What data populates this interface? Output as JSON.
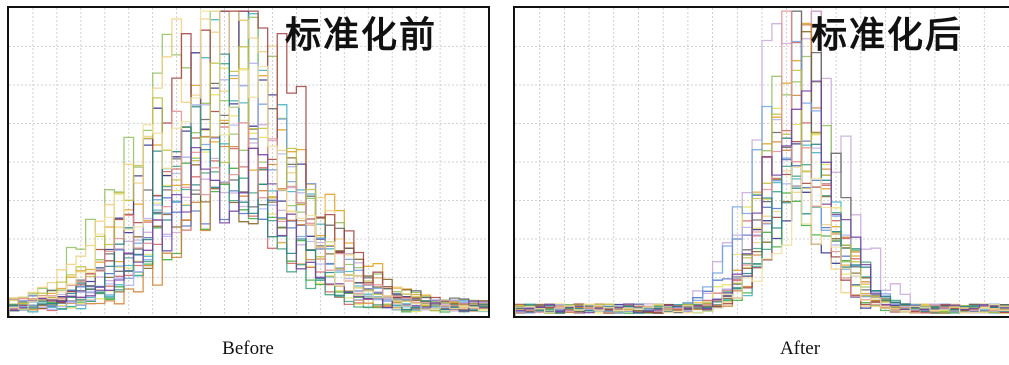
{
  "chart_data": [
    {
      "type": "line",
      "style": "step-histogram",
      "title": "标准化前",
      "caption": "Before",
      "xlim": [
        0,
        100
      ],
      "ylim": [
        0,
        100
      ],
      "grid": true,
      "grid_x_lines": 19,
      "grid_y_lines": 7,
      "series_count": 22,
      "distribution": {
        "center": 45,
        "spread": 13,
        "peak_range": [
          45,
          100
        ],
        "baseline": 4
      }
    },
    {
      "type": "line",
      "style": "step-histogram",
      "title": "标准化后",
      "caption": "After",
      "xlim": [
        0,
        100
      ],
      "ylim": [
        0,
        100
      ],
      "grid": true,
      "grid_x_lines": 19,
      "grid_y_lines": 7,
      "series_count": 22,
      "distribution": {
        "center": 57,
        "spread": 7,
        "peak_range": [
          40,
          96
        ],
        "baseline": 3
      }
    }
  ],
  "palette": [
    "#e0a020",
    "#2a2a8a",
    "#3aaa3a",
    "#d06060",
    "#40b0c0",
    "#c8a8d8",
    "#806020",
    "#e8e060",
    "#5070c0",
    "#90c060",
    "#d08030",
    "#606060",
    "#f0d080",
    "#70a0e0",
    "#a04040",
    "#40a080",
    "#b0b0f0",
    "#c0c040",
    "#208080",
    "#e09090",
    "#7040a0",
    "#f0e0a0"
  ]
}
